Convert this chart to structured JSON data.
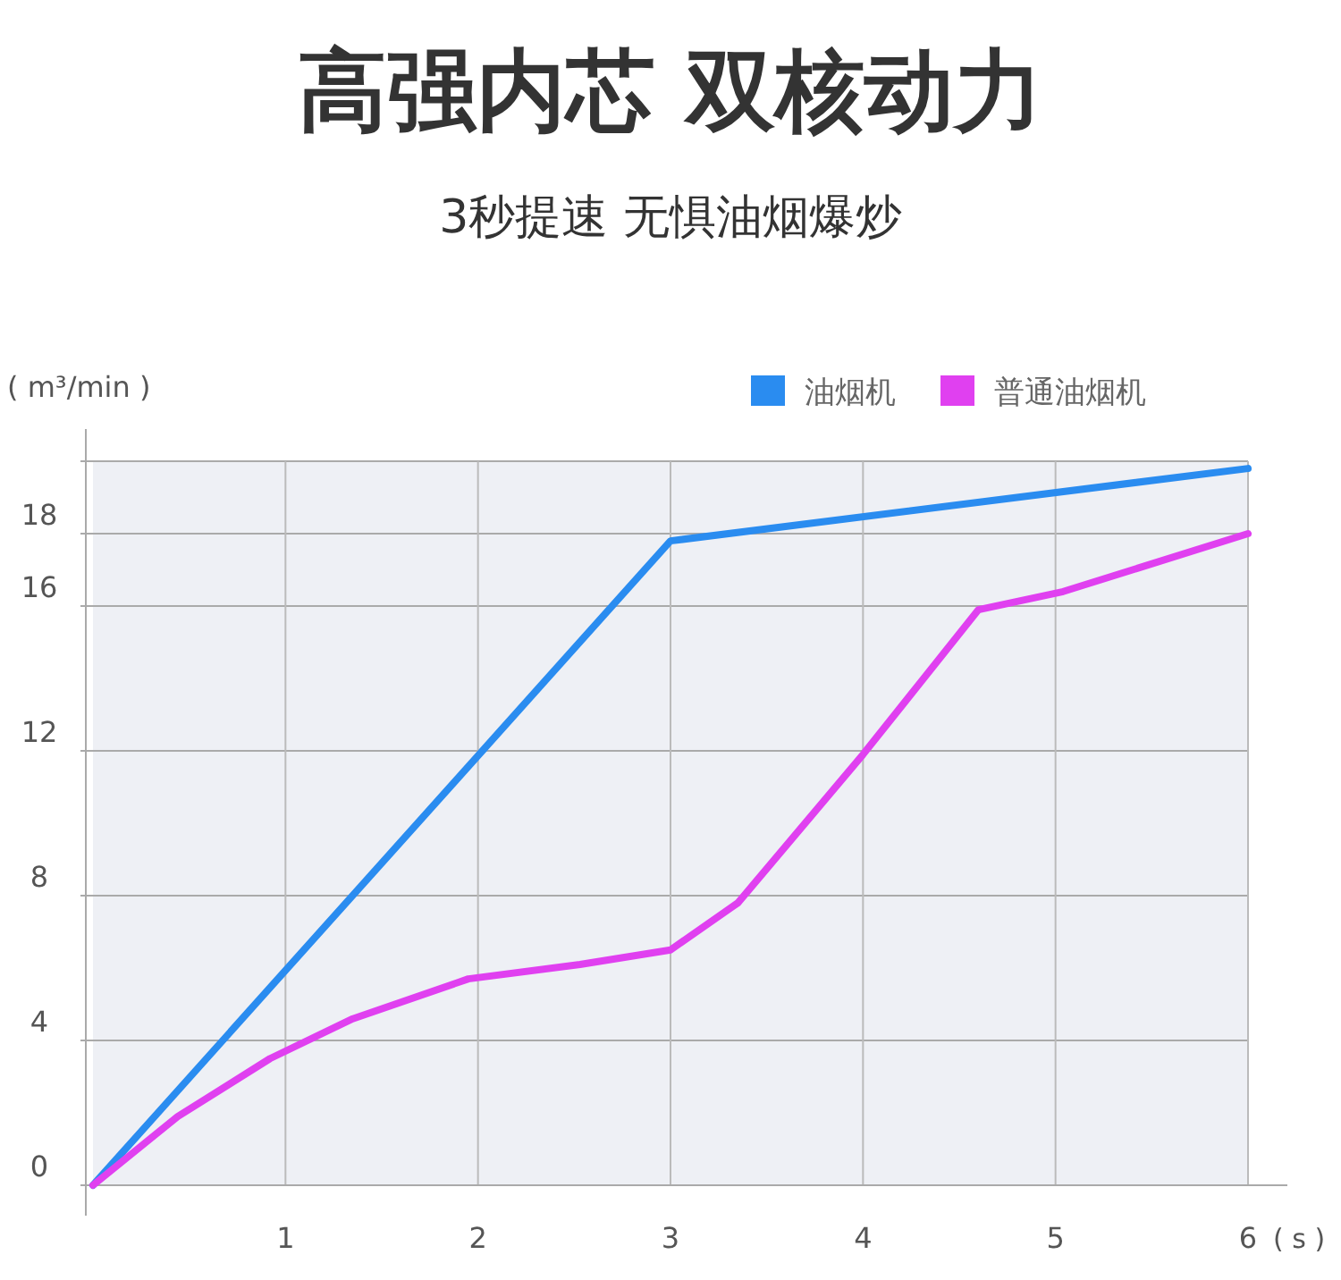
{
  "chart_data": {
    "type": "line",
    "title": "高强内芯 双核动力",
    "subtitle": "3秒提速 无惧油烟爆炒",
    "ylabel": "( m³/min )",
    "xlabel": "( s )",
    "xlim": [
      0,
      6
    ],
    "xticks": [
      1,
      2,
      3,
      4,
      5,
      6
    ],
    "ylim": [
      0,
      20
    ],
    "yticks": [
      0,
      4,
      8,
      12,
      16,
      18,
      {
        "value": 20,
        "label": null
      }
    ],
    "grid": true,
    "legend": "top right",
    "line_style": "solid",
    "series": [
      {
        "name": "油烟机",
        "color": "#2a8cf0",
        "x": [
          0,
          3,
          6
        ],
        "values": [
          0,
          17.8,
          19.8
        ]
      },
      {
        "name": "普通油烟机",
        "color": "#e040f0",
        "x": [
          0,
          0.44,
          0.92,
          1.35,
          1.95,
          2.53,
          3,
          3.35,
          4,
          4.6,
          5.04,
          6
        ],
        "values": [
          0,
          1.9,
          3.5,
          4.6,
          5.7,
          6.1,
          6.5,
          7.8,
          11.9,
          15.9,
          16.4,
          18
        ]
      }
    ]
  }
}
